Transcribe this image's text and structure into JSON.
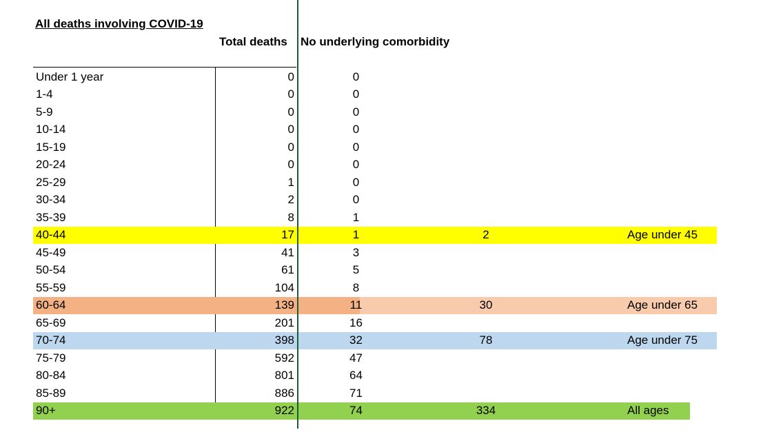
{
  "title": "All deaths involving COVID-19",
  "headers": {
    "total_deaths": "Total deaths",
    "no_comorbidity": "No underlying comorbidity"
  },
  "colors": {
    "yellow": "#ffff00",
    "orange_dark": "#f4b183",
    "orange_light": "#f8cbad",
    "blue": "#bdd7ee",
    "green": "#92d050",
    "green_line": "#1e5b3a"
  },
  "rows": [
    {
      "age": "Under 1 year",
      "total": "0",
      "no_comorbidity": "0"
    },
    {
      "age": "1-4",
      "total": "0",
      "no_comorbidity": "0"
    },
    {
      "age": "5-9",
      "total": "0",
      "no_comorbidity": "0"
    },
    {
      "age": "10-14",
      "total": "0",
      "no_comorbidity": "0"
    },
    {
      "age": "15-19",
      "total": "0",
      "no_comorbidity": "0"
    },
    {
      "age": "20-24",
      "total": "0",
      "no_comorbidity": "0"
    },
    {
      "age": "25-29",
      "total": "1",
      "no_comorbidity": "0"
    },
    {
      "age": "30-34",
      "total": "2",
      "no_comorbidity": "0"
    },
    {
      "age": "35-39",
      "total": "8",
      "no_comorbidity": "1"
    },
    {
      "age": "40-44",
      "total": "17",
      "no_comorbidity": "1",
      "cumulative": "2",
      "label": "Age under 45"
    },
    {
      "age": "45-49",
      "total": "41",
      "no_comorbidity": "3"
    },
    {
      "age": "50-54",
      "total": "61",
      "no_comorbidity": "5"
    },
    {
      "age": "55-59",
      "total": "104",
      "no_comorbidity": "8"
    },
    {
      "age": "60-64",
      "total": "139",
      "no_comorbidity": "11",
      "cumulative": "30",
      "label": "Age under 65"
    },
    {
      "age": "65-69",
      "total": "201",
      "no_comorbidity": "16"
    },
    {
      "age": "70-74",
      "total": "398",
      "no_comorbidity": "32",
      "cumulative": "78",
      "label": "Age under 75"
    },
    {
      "age": "75-79",
      "total": "592",
      "no_comorbidity": "47"
    },
    {
      "age": "80-84",
      "total": "801",
      "no_comorbidity": "64"
    },
    {
      "age": "85-89",
      "total": "886",
      "no_comorbidity": "71"
    },
    {
      "age": "90+",
      "total": "922",
      "no_comorbidity": "74",
      "cumulative": "334",
      "label": "All ages"
    }
  ]
}
